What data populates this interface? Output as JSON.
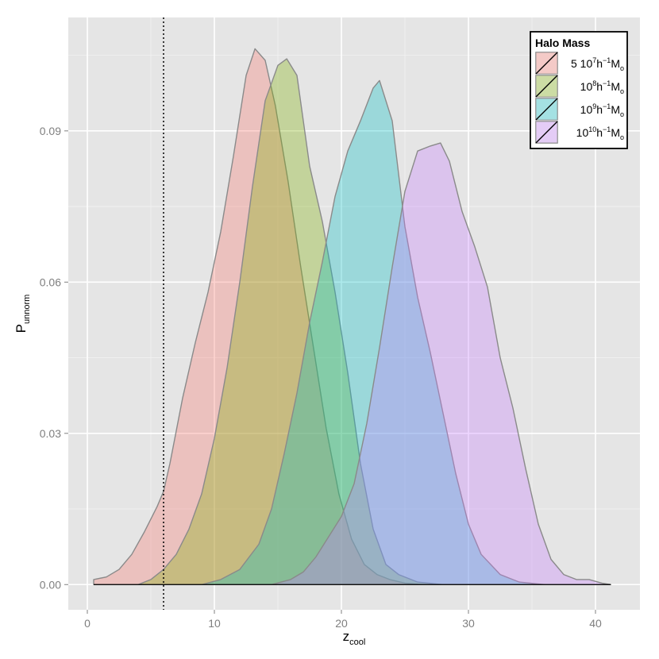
{
  "chart_data": {
    "type": "area",
    "title": "",
    "xlabel": {
      "main": "z",
      "sub": "cool"
    },
    "ylabel": {
      "main": "P",
      "sub": "unnorm"
    },
    "xlim": [
      -1.5,
      43.5
    ],
    "ylim": [
      -0.005,
      0.1125
    ],
    "x_ticks": [
      0,
      10,
      20,
      30,
      40
    ],
    "y_ticks": [
      0.0,
      0.03,
      0.06,
      0.09
    ],
    "x_tick_labels": [
      "0",
      "10",
      "20",
      "30",
      "40"
    ],
    "y_tick_labels": [
      "0.00",
      "0.03",
      "0.06",
      "0.09"
    ],
    "grid": true,
    "vline": {
      "x": 6.0,
      "style": "dotted"
    },
    "legend": {
      "title": "Halo Mass",
      "position": "top-right",
      "entries": [
        {
          "text": "5 10",
          "sup": "7",
          "unit": "h",
          "unit_sup": "−1",
          "mass": "M",
          "mass_sub": "o"
        },
        {
          "text": "10",
          "sup": "8",
          "unit": "h",
          "unit_sup": "−1",
          "mass": "M",
          "mass_sub": "o"
        },
        {
          "text": "10",
          "sup": "9",
          "unit": "h",
          "unit_sup": "−1",
          "mass": "M",
          "mass_sub": "o"
        },
        {
          "text": "10",
          "sup": "10",
          "unit": "h",
          "unit_sup": "−1",
          "mass": "M",
          "mass_sub": "o"
        }
      ]
    },
    "series": [
      {
        "name": "5 10^7 h^-1 M_o",
        "color": "#f8766d",
        "points": [
          [
            0.5,
            0.001
          ],
          [
            1.5,
            0.0015
          ],
          [
            2.5,
            0.003
          ],
          [
            3.5,
            0.006
          ],
          [
            4.5,
            0.0105
          ],
          [
            5.5,
            0.0155
          ],
          [
            6.0,
            0.0185
          ],
          [
            6.5,
            0.024
          ],
          [
            7.5,
            0.037
          ],
          [
            8.5,
            0.048
          ],
          [
            9.5,
            0.058
          ],
          [
            10.5,
            0.07
          ],
          [
            11.5,
            0.085
          ],
          [
            12.5,
            0.101
          ],
          [
            13.2,
            0.1063
          ],
          [
            14.0,
            0.104
          ],
          [
            14.8,
            0.095
          ],
          [
            15.8,
            0.08
          ],
          [
            16.8,
            0.063
          ],
          [
            17.8,
            0.047
          ],
          [
            18.8,
            0.031
          ],
          [
            19.8,
            0.018
          ],
          [
            20.8,
            0.009
          ],
          [
            21.8,
            0.004
          ],
          [
            22.8,
            0.002
          ],
          [
            23.8,
            0.001
          ],
          [
            25.0,
            0.0003
          ],
          [
            26.5,
            0.0
          ]
        ]
      },
      {
        "name": "10^8 h^-1 M_o",
        "color": "#7cae00",
        "points": [
          [
            4.0,
            0.0
          ],
          [
            5.0,
            0.001
          ],
          [
            6.0,
            0.003
          ],
          [
            7.0,
            0.006
          ],
          [
            8.0,
            0.011
          ],
          [
            9.0,
            0.018
          ],
          [
            10.0,
            0.029
          ],
          [
            11.0,
            0.043
          ],
          [
            12.0,
            0.06
          ],
          [
            13.0,
            0.079
          ],
          [
            14.0,
            0.096
          ],
          [
            15.0,
            0.103
          ],
          [
            15.7,
            0.1043
          ],
          [
            16.5,
            0.101
          ],
          [
            17.5,
            0.083
          ],
          [
            18.5,
            0.072
          ],
          [
            19.5,
            0.058
          ],
          [
            20.5,
            0.042
          ],
          [
            21.5,
            0.024
          ],
          [
            22.5,
            0.011
          ],
          [
            23.5,
            0.004
          ],
          [
            24.5,
            0.002
          ],
          [
            26.0,
            0.0005
          ],
          [
            28.0,
            0.0
          ]
        ]
      },
      {
        "name": "10^9 h^-1 M_o",
        "color": "#00bfc4",
        "points": [
          [
            9.0,
            0.0
          ],
          [
            10.5,
            0.001
          ],
          [
            12.0,
            0.003
          ],
          [
            13.5,
            0.008
          ],
          [
            14.5,
            0.015
          ],
          [
            15.5,
            0.026
          ],
          [
            16.5,
            0.038
          ],
          [
            17.5,
            0.052
          ],
          [
            18.5,
            0.064
          ],
          [
            19.5,
            0.077
          ],
          [
            20.5,
            0.086
          ],
          [
            21.5,
            0.092
          ],
          [
            22.5,
            0.0985
          ],
          [
            23.0,
            0.1
          ],
          [
            24.0,
            0.092
          ],
          [
            25.0,
            0.071
          ],
          [
            26.0,
            0.057
          ],
          [
            27.0,
            0.046
          ],
          [
            28.0,
            0.034
          ],
          [
            29.0,
            0.022
          ],
          [
            30.0,
            0.012
          ],
          [
            31.0,
            0.006
          ],
          [
            32.5,
            0.002
          ],
          [
            34.0,
            0.0005
          ],
          [
            36.0,
            0.0
          ]
        ]
      },
      {
        "name": "10^10 h^-1 M_o",
        "color": "#c77cff",
        "points": [
          [
            14.5,
            0.0
          ],
          [
            16.0,
            0.001
          ],
          [
            17.0,
            0.0025
          ],
          [
            18.0,
            0.0055
          ],
          [
            19.0,
            0.0095
          ],
          [
            20.0,
            0.0135
          ],
          [
            21.0,
            0.02
          ],
          [
            22.0,
            0.032
          ],
          [
            23.0,
            0.047
          ],
          [
            24.0,
            0.063
          ],
          [
            25.0,
            0.078
          ],
          [
            26.0,
            0.086
          ],
          [
            27.0,
            0.087
          ],
          [
            27.8,
            0.0876
          ],
          [
            28.5,
            0.084
          ],
          [
            29.5,
            0.074
          ],
          [
            30.5,
            0.067
          ],
          [
            31.5,
            0.059
          ],
          [
            32.5,
            0.045
          ],
          [
            33.5,
            0.035
          ],
          [
            34.5,
            0.023
          ],
          [
            35.5,
            0.012
          ],
          [
            36.5,
            0.005
          ],
          [
            37.5,
            0.002
          ],
          [
            38.5,
            0.001
          ],
          [
            39.5,
            0.001
          ],
          [
            40.5,
            0.0003
          ],
          [
            41.2,
            0.0
          ]
        ]
      }
    ]
  }
}
